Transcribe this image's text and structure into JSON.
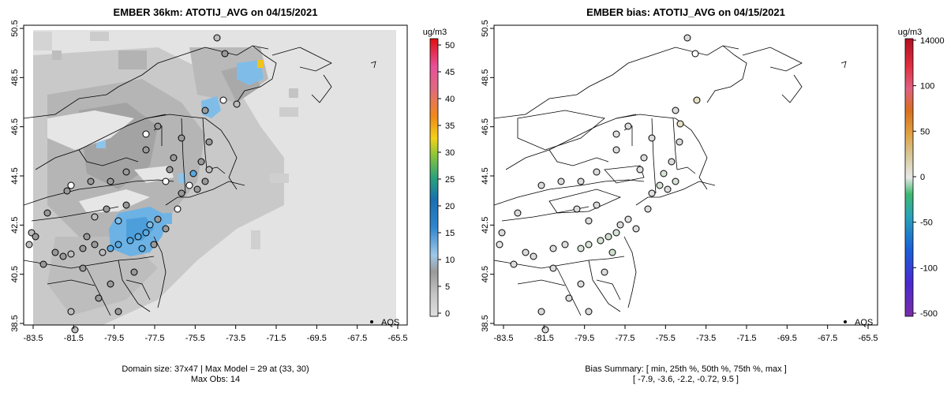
{
  "left_panel": {
    "title": "EMBER 36km: ATOTIJ_AVG on 04/15/2021",
    "x_ticks": [
      "-83.5",
      "-81.5",
      "-79.5",
      "-77.5",
      "-75.5",
      "-73.5",
      "-71.5",
      "-69.5",
      "-67.5",
      "-65.5"
    ],
    "y_ticks": [
      "38.5",
      "40.5",
      "42.5",
      "44.5",
      "46.5",
      "48.5",
      "50.5"
    ],
    "legend_label": "AQS",
    "colorbar_unit": "ug/m3",
    "colorbar_ticks": [
      "0",
      "5",
      "10",
      "15",
      "20",
      "25",
      "30",
      "35",
      "40",
      "45",
      "50"
    ],
    "footer_line1": "Domain size: 37x47 | Max Model = 29 at (33, 30)",
    "footer_line2": "Max Obs: 14"
  },
  "right_panel": {
    "title": "EMBER bias: ATOTIJ_AVG on 04/15/2021",
    "x_ticks": [
      "-83.5",
      "-81.5",
      "-79.5",
      "-77.5",
      "-75.5",
      "-73.5",
      "-71.5",
      "-69.5",
      "-67.5",
      "-65.5"
    ],
    "y_ticks": [
      "38.5",
      "40.5",
      "42.5",
      "44.5",
      "46.5",
      "48.5",
      "50.5"
    ],
    "legend_label": "AQS",
    "colorbar_unit": "ug/m3",
    "colorbar_ticks": [
      "14000",
      "100",
      "50",
      "0",
      "-50",
      "-100",
      "-500"
    ],
    "footer_line1": "Bias Summary: [ min, 25th %, 50th %, 75th %, max ]",
    "footer_line2": "[ -7.9,   -3.6,   -2.2,   -0.72,   9.5 ]"
  },
  "colors": {
    "ocean_fill": "#e3e3e3",
    "land_light": "#d0d0d0",
    "land_mid": "#bcbcbc",
    "land_dark": "#a6a6a6",
    "blue_high": "#5aa9e0",
    "blue_mid": "#7fbde8",
    "hotspot": "#f0c419"
  }
}
